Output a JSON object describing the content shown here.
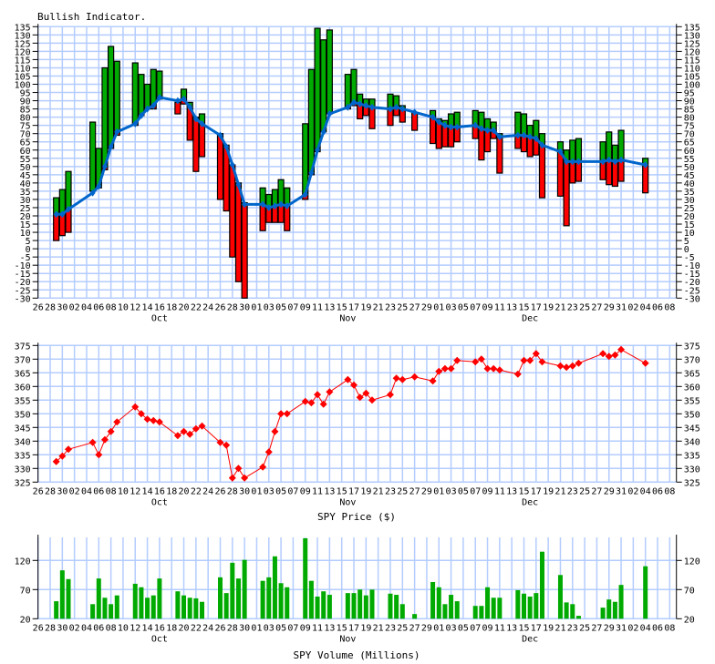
{
  "colors": {
    "grid": "#b4ccff",
    "up": "#00aa00",
    "down": "#ff0000",
    "ma_line": "#0066cc",
    "price_line": "#ff0000",
    "volume_bar": "#00aa00"
  },
  "x_tick_labels": [
    "26",
    "28",
    "30",
    "02",
    "04",
    "06",
    "08",
    "10",
    "12",
    "14",
    "16",
    "18",
    "20",
    "22",
    "24",
    "26",
    "28",
    "30",
    "01",
    "03",
    "05",
    "07",
    "09",
    "11",
    "13",
    "15",
    "17",
    "19",
    "21",
    "23",
    "25",
    "27",
    "29",
    "01",
    "03",
    "05",
    "07",
    "09",
    "11",
    "13",
    "15",
    "17",
    "19",
    "21",
    "23",
    "25",
    "27",
    "29",
    "31",
    "02",
    "04",
    "06",
    "08"
  ],
  "month_labels": [
    "Oct",
    "Nov",
    "Dec"
  ],
  "chart_data": [
    {
      "type": "bar",
      "title": "Bullish Indicator.",
      "ylim": [
        -30,
        135
      ],
      "y_tick_step": 5,
      "grid": true,
      "x": [
        "09-29",
        "09-30",
        "10-01",
        "10-05",
        "10-06",
        "10-07",
        "10-08",
        "10-09",
        "10-12",
        "10-13",
        "10-14",
        "10-15",
        "10-16",
        "10-19",
        "10-20",
        "10-21",
        "10-22",
        "10-23",
        "10-26",
        "10-27",
        "10-28",
        "10-29",
        "10-30",
        "11-02",
        "11-03",
        "11-04",
        "11-05",
        "11-06",
        "11-09",
        "11-10",
        "11-11",
        "11-12",
        "11-13",
        "11-16",
        "11-17",
        "11-18",
        "11-19",
        "11-20",
        "11-23",
        "11-24",
        "11-25",
        "11-27",
        "11-30",
        "12-01",
        "12-02",
        "12-03",
        "12-04",
        "12-07",
        "12-08",
        "12-09",
        "12-10",
        "12-11",
        "12-14",
        "12-15",
        "12-16",
        "12-17",
        "12-18",
        "12-21",
        "12-22",
        "12-23",
        "12-24",
        "12-28",
        "12-29",
        "12-30",
        "12-31",
        "01-04"
      ],
      "high": [
        31,
        36,
        47,
        77,
        61,
        110,
        123,
        114,
        113,
        106,
        100,
        109,
        108,
        89,
        97,
        89,
        80,
        82,
        70,
        63,
        51,
        40,
        28,
        37,
        33,
        36,
        42,
        37,
        76,
        109,
        134,
        127,
        133,
        106,
        109,
        94,
        91,
        91,
        94,
        93,
        87,
        83,
        84,
        79,
        78,
        82,
        83,
        84,
        83,
        79,
        77,
        70,
        83,
        82,
        75,
        78,
        70,
        65,
        60,
        66,
        67,
        65,
        71,
        63,
        72,
        55
      ],
      "low": [
        5,
        8,
        10,
        35,
        37,
        48,
        61,
        69,
        75,
        81,
        85,
        85,
        91,
        82,
        88,
        66,
        47,
        56,
        30,
        23,
        -5,
        -20,
        -30,
        11,
        16,
        16,
        16,
        11,
        30,
        45,
        59,
        71,
        82,
        85,
        87,
        79,
        81,
        73,
        75,
        81,
        77,
        72,
        64,
        61,
        62,
        62,
        65,
        67,
        54,
        59,
        67,
        46,
        61,
        59,
        56,
        57,
        31,
        32,
        14,
        40,
        41,
        42,
        39,
        38,
        41,
        34
      ],
      "ma": [
        21,
        21,
        24,
        34,
        38,
        50,
        62,
        71,
        76,
        81,
        85,
        87,
        92,
        90,
        91,
        86,
        79,
        76,
        69,
        62,
        51,
        39,
        27,
        27,
        25,
        26,
        27,
        26,
        33,
        46,
        60,
        71,
        82,
        86,
        89,
        88,
        87,
        86,
        85,
        86,
        85,
        83,
        80,
        77,
        75,
        74,
        74,
        75,
        73,
        72,
        72,
        68,
        69,
        69,
        68,
        67,
        63,
        59,
        53,
        53,
        53,
        53,
        54,
        53,
        54,
        51
      ]
    },
    {
      "type": "line",
      "title": "SPY Price ($)",
      "ylim": [
        325,
        375
      ],
      "y_tick_step": 5,
      "grid": true,
      "x": [
        "09-29",
        "09-30",
        "10-01",
        "10-05",
        "10-06",
        "10-07",
        "10-08",
        "10-09",
        "10-12",
        "10-13",
        "10-14",
        "10-15",
        "10-16",
        "10-19",
        "10-20",
        "10-21",
        "10-22",
        "10-23",
        "10-26",
        "10-27",
        "10-28",
        "10-29",
        "10-30",
        "11-02",
        "11-03",
        "11-04",
        "11-05",
        "11-06",
        "11-09",
        "11-10",
        "11-11",
        "11-12",
        "11-13",
        "11-16",
        "11-17",
        "11-18",
        "11-19",
        "11-20",
        "11-23",
        "11-24",
        "11-25",
        "11-27",
        "11-30",
        "12-01",
        "12-02",
        "12-03",
        "12-04",
        "12-07",
        "12-08",
        "12-09",
        "12-10",
        "12-11",
        "12-14",
        "12-15",
        "12-16",
        "12-17",
        "12-18",
        "12-21",
        "12-22",
        "12-23",
        "12-24",
        "12-28",
        "12-29",
        "12-30",
        "12-31",
        "01-04"
      ],
      "values": [
        332.5,
        334.5,
        337,
        339.5,
        335,
        340.5,
        343.5,
        347,
        352.5,
        350,
        348,
        347.5,
        347,
        342,
        343.5,
        342.5,
        344.5,
        345.5,
        339.5,
        338.5,
        326.5,
        330,
        326.5,
        330.5,
        336,
        343.5,
        350,
        350,
        354.5,
        354,
        357,
        353.5,
        358,
        362.5,
        360.5,
        356,
        357.5,
        355,
        357,
        363,
        362.5,
        363.5,
        362,
        365.5,
        366.5,
        366.5,
        369.5,
        369,
        370,
        366.5,
        366.5,
        366,
        364.5,
        369.5,
        369.5,
        372,
        369,
        367.5,
        367,
        367.5,
        368.5,
        372,
        371,
        371.5,
        373.5,
        368.5
      ]
    },
    {
      "type": "bar",
      "title": "SPY Volume (Millions)",
      "ylim": [
        20,
        160
      ],
      "y_ticks": [
        20,
        70,
        120
      ],
      "grid": true,
      "x": [
        "09-29",
        "09-30",
        "10-01",
        "10-05",
        "10-06",
        "10-07",
        "10-08",
        "10-09",
        "10-12",
        "10-13",
        "10-14",
        "10-15",
        "10-16",
        "10-19",
        "10-20",
        "10-21",
        "10-22",
        "10-23",
        "10-26",
        "10-27",
        "10-28",
        "10-29",
        "10-30",
        "11-02",
        "11-03",
        "11-04",
        "11-05",
        "11-06",
        "11-09",
        "11-10",
        "11-11",
        "11-12",
        "11-13",
        "11-16",
        "11-17",
        "11-18",
        "11-19",
        "11-20",
        "11-23",
        "11-24",
        "11-25",
        "11-27",
        "11-30",
        "12-01",
        "12-02",
        "12-03",
        "12-04",
        "12-07",
        "12-08",
        "12-09",
        "12-10",
        "12-11",
        "12-14",
        "12-15",
        "12-16",
        "12-17",
        "12-18",
        "12-21",
        "12-22",
        "12-23",
        "12-24",
        "12-28",
        "12-29",
        "12-30",
        "12-31",
        "01-04"
      ],
      "values": [
        50,
        103,
        88,
        45,
        89,
        56,
        45,
        60,
        80,
        74,
        56,
        60,
        89,
        67,
        60,
        56,
        55,
        49,
        91,
        64,
        116,
        89,
        121,
        85,
        91,
        127,
        81,
        74,
        158,
        85,
        58,
        67,
        61,
        64,
        64,
        70,
        60,
        70,
        63,
        61,
        45,
        28,
        83,
        74,
        45,
        61,
        50,
        42,
        42,
        74,
        56,
        56,
        69,
        63,
        58,
        64,
        135,
        95,
        48,
        45,
        25,
        39,
        53,
        49,
        78,
        110
      ]
    }
  ]
}
